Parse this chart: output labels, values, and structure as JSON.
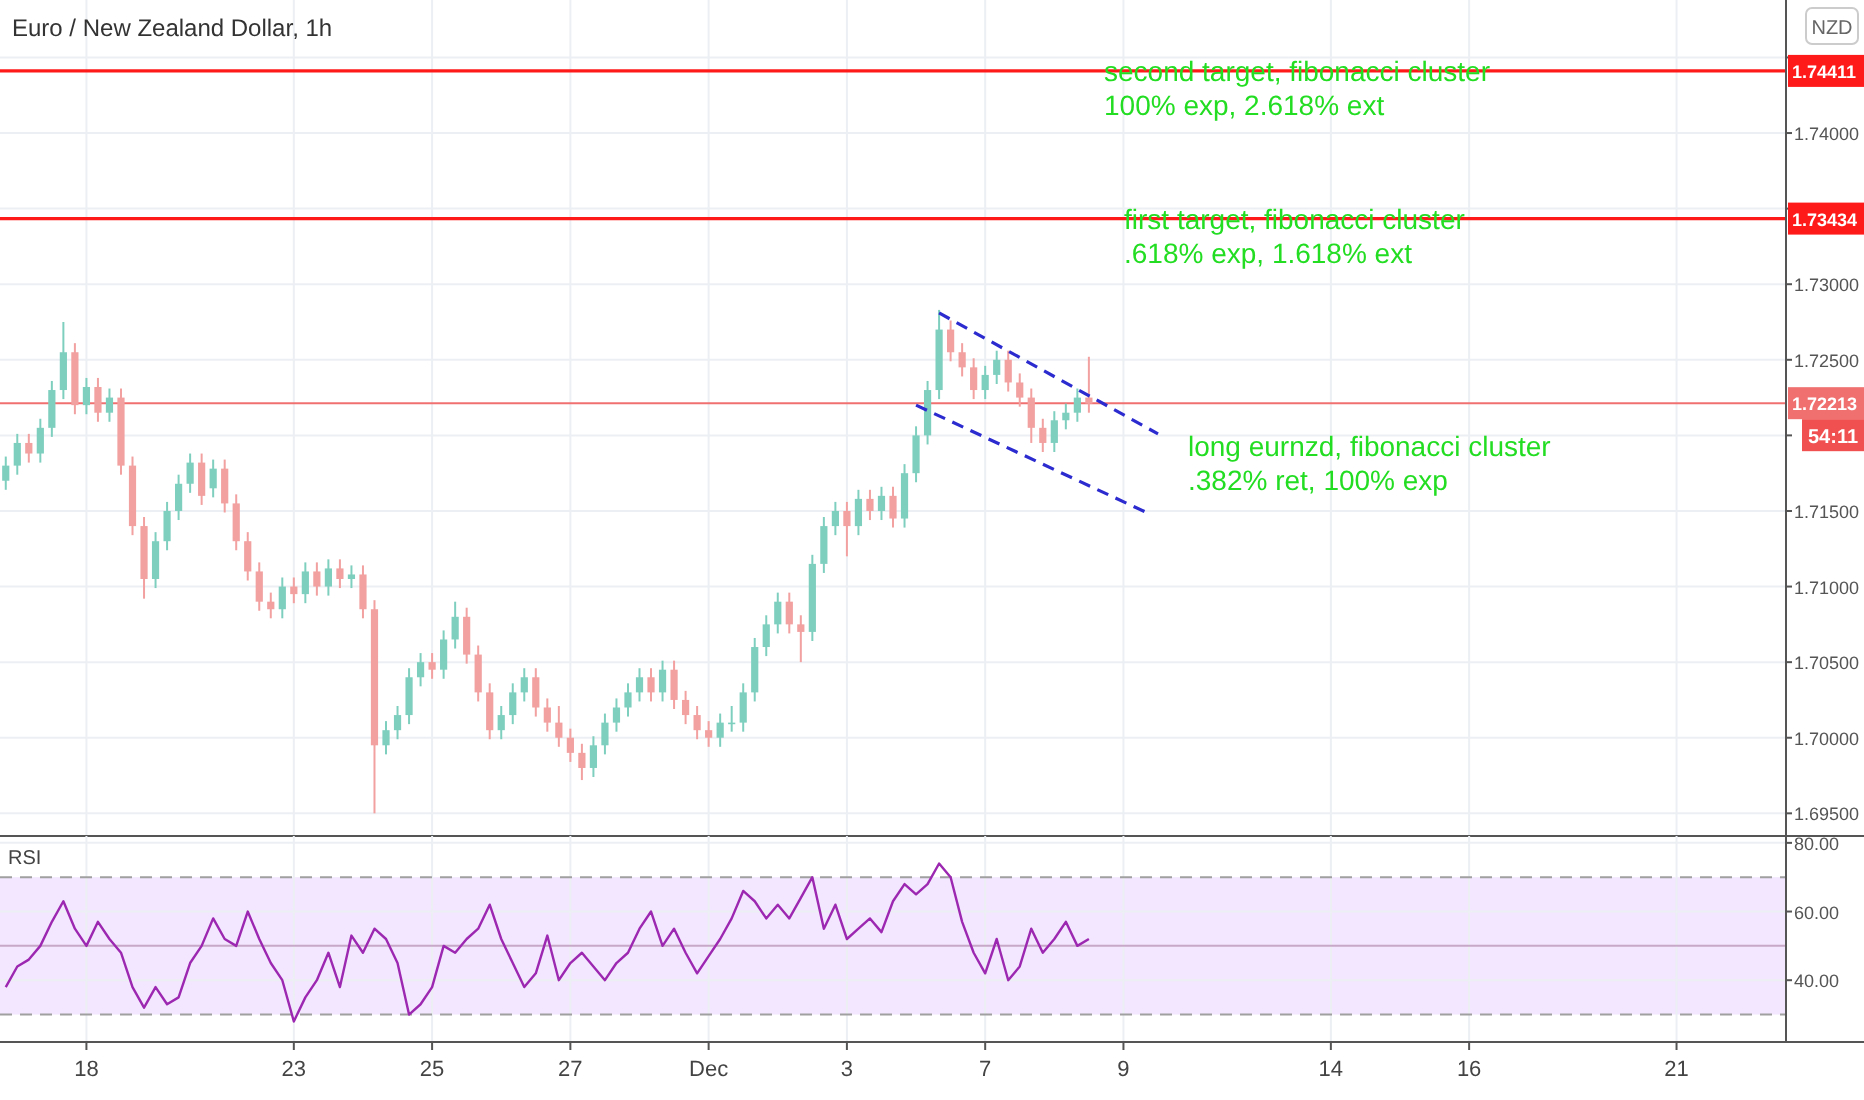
{
  "chart_data": [
    {
      "type": "candlestick",
      "title": "Euro / New Zealand Dollar, 1h",
      "ylabel": "NZD",
      "categories": [
        null,
        null,
        null,
        null,
        null,
        null,
        null,
        null,
        null,
        null,
        null,
        null,
        null,
        null,
        null,
        null,
        null,
        null,
        null,
        null,
        null,
        null,
        null,
        null,
        null,
        null,
        null,
        null,
        null,
        null,
        null,
        null,
        null,
        null,
        null,
        null,
        null,
        null,
        null,
        null,
        null,
        null,
        null,
        null,
        null,
        null,
        null,
        null,
        null,
        null,
        null,
        null,
        null,
        null,
        null,
        null,
        null,
        null,
        null,
        null,
        null,
        null,
        null,
        null,
        null,
        null,
        null,
        null,
        null,
        null,
        null,
        null,
        null,
        null,
        null,
        null,
        null,
        null,
        null,
        null,
        null,
        null,
        null,
        null,
        null,
        null,
        null,
        null,
        null,
        null,
        null,
        null,
        null,
        null,
        null,
        null,
        null,
        null,
        null,
        null,
        null,
        null,
        null,
        null,
        null,
        null,
        null,
        null,
        null,
        null,
        null,
        null,
        null,
        null,
        null,
        null,
        null,
        null,
        null,
        null,
        null,
        null,
        null,
        null,
        null,
        null,
        null,
        null,
        null,
        null,
        null,
        null,
        null,
        null,
        null,
        null,
        null,
        null,
        null,
        null,
        null,
        null,
        null,
        null,
        null,
        null,
        null,
        null,
        null,
        null,
        null,
        null,
        null,
        null,
        null
      ],
      "ohlc": [
        [
          1.717,
          1.7186,
          1.7164,
          1.718
        ],
        [
          1.718,
          1.7201,
          1.7174,
          1.7195
        ],
        [
          1.7195,
          1.7201,
          1.7182,
          1.7188
        ],
        [
          1.7188,
          1.7211,
          1.7182,
          1.7205
        ],
        [
          1.7205,
          1.7236,
          1.7199,
          1.723
        ],
        [
          1.723,
          1.7275,
          1.7224,
          1.7255
        ],
        [
          1.7255,
          1.7261,
          1.7214,
          1.722
        ],
        [
          1.722,
          1.7238,
          1.7214,
          1.7232
        ],
        [
          1.7232,
          1.7238,
          1.7209,
          1.7215
        ],
        [
          1.7215,
          1.7231,
          1.7209,
          1.7225
        ],
        [
          1.7225,
          1.7231,
          1.7174,
          1.718
        ],
        [
          1.718,
          1.7186,
          1.7134,
          1.714
        ],
        [
          1.714,
          1.7146,
          1.7092,
          1.7105
        ],
        [
          1.7105,
          1.7136,
          1.7099,
          1.713
        ],
        [
          1.713,
          1.7156,
          1.7124,
          1.715
        ],
        [
          1.715,
          1.7174,
          1.7144,
          1.7168
        ],
        [
          1.7168,
          1.7188,
          1.7162,
          1.7182
        ],
        [
          1.7182,
          1.7188,
          1.7154,
          1.716
        ],
        [
          1.7165,
          1.7184,
          1.7159,
          1.7178
        ],
        [
          1.7178,
          1.7184,
          1.7149,
          1.7155
        ],
        [
          1.7155,
          1.7161,
          1.7124,
          1.713
        ],
        [
          1.713,
          1.7136,
          1.7104,
          1.711
        ],
        [
          1.711,
          1.7116,
          1.7084,
          1.709
        ],
        [
          1.709,
          1.7096,
          1.7079,
          1.7085
        ],
        [
          1.7085,
          1.7106,
          1.7079,
          1.71
        ],
        [
          1.71,
          1.7106,
          1.7089,
          1.7095
        ],
        [
          1.7095,
          1.7116,
          1.7089,
          1.711
        ],
        [
          1.711,
          1.7116,
          1.7094,
          1.71
        ],
        [
          1.71,
          1.7118,
          1.7094,
          1.7112
        ],
        [
          1.7112,
          1.7118,
          1.7099,
          1.7105
        ],
        [
          1.7105,
          1.7114,
          1.7099,
          1.7108
        ],
        [
          1.7108,
          1.7114,
          1.7079,
          1.7085
        ],
        [
          1.7085,
          1.7091,
          1.695,
          1.6995
        ],
        [
          1.6995,
          1.7011,
          1.6989,
          1.7005
        ],
        [
          1.7005,
          1.7021,
          1.6999,
          1.7015
        ],
        [
          1.7015,
          1.7046,
          1.7009,
          1.704
        ],
        [
          1.704,
          1.7056,
          1.7034,
          1.705
        ],
        [
          1.705,
          1.7056,
          1.7039,
          1.7045
        ],
        [
          1.7045,
          1.7071,
          1.7039,
          1.7065
        ],
        [
          1.7065,
          1.709,
          1.7059,
          1.708
        ],
        [
          1.708,
          1.7086,
          1.7049,
          1.7055
        ],
        [
          1.7055,
          1.7061,
          1.7024,
          1.703
        ],
        [
          1.703,
          1.7036,
          1.6999,
          1.7005
        ],
        [
          1.7005,
          1.7021,
          1.6999,
          1.7015
        ],
        [
          1.7015,
          1.7036,
          1.7009,
          1.703
        ],
        [
          1.703,
          1.7046,
          1.7024,
          1.704
        ],
        [
          1.704,
          1.7046,
          1.7014,
          1.702
        ],
        [
          1.702,
          1.7026,
          1.7004,
          1.701
        ],
        [
          1.701,
          1.7021,
          1.6994,
          1.7
        ],
        [
          1.7,
          1.7006,
          1.6984,
          1.699
        ],
        [
          1.699,
          1.6996,
          1.6972,
          1.698
        ],
        [
          1.698,
          1.7001,
          1.6974,
          1.6995
        ],
        [
          1.6995,
          1.7016,
          1.6989,
          1.701
        ],
        [
          1.701,
          1.7026,
          1.7004,
          1.702
        ],
        [
          1.702,
          1.7036,
          1.7014,
          1.703
        ],
        [
          1.703,
          1.7046,
          1.7024,
          1.704
        ],
        [
          1.704,
          1.7046,
          1.7024,
          1.703
        ],
        [
          1.703,
          1.7051,
          1.7024,
          1.7045
        ],
        [
          1.7045,
          1.7051,
          1.7019,
          1.7025
        ],
        [
          1.7025,
          1.7031,
          1.7009,
          1.7015
        ],
        [
          1.7015,
          1.7021,
          1.6999,
          1.7005
        ],
        [
          1.7005,
          1.7011,
          1.6994,
          1.7
        ],
        [
          1.7,
          1.7016,
          1.6994,
          1.701
        ],
        [
          1.701,
          1.7021,
          1.7004,
          1.701
        ],
        [
          1.701,
          1.7036,
          1.7004,
          1.703
        ],
        [
          1.703,
          1.7066,
          1.7024,
          1.706
        ],
        [
          1.706,
          1.7081,
          1.7054,
          1.7075
        ],
        [
          1.7075,
          1.7096,
          1.7069,
          1.709
        ],
        [
          1.709,
          1.7096,
          1.7069,
          1.7075
        ],
        [
          1.7075,
          1.7081,
          1.705,
          1.707
        ],
        [
          1.707,
          1.7121,
          1.7064,
          1.7115
        ],
        [
          1.7115,
          1.7146,
          1.7109,
          1.714
        ],
        [
          1.714,
          1.7156,
          1.7134,
          1.715
        ],
        [
          1.715,
          1.7156,
          1.712,
          1.714
        ],
        [
          1.714,
          1.7164,
          1.7134,
          1.7158
        ],
        [
          1.7158,
          1.7164,
          1.7144,
          1.715
        ],
        [
          1.715,
          1.7166,
          1.7144,
          1.716
        ],
        [
          1.716,
          1.7166,
          1.7139,
          1.7145
        ],
        [
          1.7145,
          1.7181,
          1.7139,
          1.7175
        ],
        [
          1.7175,
          1.7206,
          1.7169,
          1.72
        ],
        [
          1.72,
          1.7236,
          1.7194,
          1.723
        ],
        [
          1.723,
          1.7283,
          1.7224,
          1.727
        ],
        [
          1.727,
          1.7276,
          1.7249,
          1.7255
        ],
        [
          1.7255,
          1.7261,
          1.7239,
          1.7245
        ],
        [
          1.7245,
          1.7251,
          1.7224,
          1.723
        ],
        [
          1.723,
          1.7246,
          1.7224,
          1.724
        ],
        [
          1.724,
          1.7256,
          1.7234,
          1.725
        ],
        [
          1.725,
          1.7256,
          1.7229,
          1.7235
        ],
        [
          1.7235,
          1.7241,
          1.7219,
          1.7225
        ],
        [
          1.7225,
          1.7231,
          1.7195,
          1.7205
        ],
        [
          1.7205,
          1.7211,
          1.7189,
          1.7195
        ],
        [
          1.7195,
          1.7216,
          1.7189,
          1.721
        ],
        [
          1.721,
          1.7221,
          1.7204,
          1.7215
        ],
        [
          1.7215,
          1.7231,
          1.7209,
          1.7225
        ],
        [
          1.7225,
          1.7252,
          1.7215,
          1.7221
        ],
        null,
        null,
        null,
        null,
        null,
        null,
        null,
        null,
        null,
        null,
        null,
        null,
        null,
        null,
        null,
        null,
        null,
        null,
        null,
        null,
        null,
        null,
        null,
        null,
        null,
        null,
        null,
        null,
        null,
        null,
        null,
        null,
        null,
        null,
        null,
        null,
        null,
        null,
        null,
        null,
        null,
        null,
        null,
        null,
        null,
        null,
        null,
        null,
        null,
        null,
        null,
        null,
        null,
        null,
        null,
        null,
        null,
        null,
        null,
        null
      ],
      "series": [
        {
          "type": "line",
          "color": "#2b2bd0",
          "line_style": "dashed",
          "values": [
            null,
            null,
            null,
            null,
            null,
            null,
            null,
            null,
            null,
            null,
            null,
            null,
            null,
            null,
            null,
            null,
            null,
            null,
            null,
            null,
            null,
            null,
            null,
            null,
            null,
            null,
            null,
            null,
            null,
            null,
            null,
            null,
            null,
            null,
            null,
            null,
            null,
            null,
            null,
            null,
            null,
            null,
            null,
            null,
            null,
            null,
            null,
            null,
            null,
            null,
            null,
            null,
            null,
            null,
            null,
            null,
            null,
            null,
            null,
            null,
            null,
            null,
            null,
            null,
            null,
            null,
            null,
            null,
            null,
            null,
            null,
            null,
            null,
            null,
            null,
            null,
            null,
            null,
            null,
            null,
            null,
            1.7281,
            null,
            null,
            null,
            null,
            null,
            null,
            null,
            null,
            null,
            null,
            null,
            null,
            null,
            null,
            null,
            null,
            null,
            null,
            1.7201,
            null,
            null,
            null,
            null,
            null,
            null,
            null,
            null,
            null,
            null,
            null,
            null,
            null,
            null,
            null,
            null,
            null,
            null,
            null,
            null,
            null,
            null,
            null,
            null,
            null,
            null,
            null,
            null,
            null,
            null,
            null,
            null,
            null,
            null,
            null,
            null,
            null,
            null,
            null,
            null,
            null,
            null,
            null,
            null,
            null,
            null,
            null,
            null,
            null,
            null,
            null,
            null,
            null,
            null
          ]
        },
        {
          "type": "line",
          "color": "#2b2bd0",
          "line_style": "dashed",
          "values": [
            null,
            null,
            null,
            null,
            null,
            null,
            null,
            null,
            null,
            null,
            null,
            null,
            null,
            null,
            null,
            null,
            null,
            null,
            null,
            null,
            null,
            null,
            null,
            null,
            null,
            null,
            null,
            null,
            null,
            null,
            null,
            null,
            null,
            null,
            null,
            null,
            null,
            null,
            null,
            null,
            null,
            null,
            null,
            null,
            null,
            null,
            null,
            null,
            null,
            null,
            null,
            null,
            null,
            null,
            null,
            null,
            null,
            null,
            null,
            null,
            null,
            null,
            null,
            null,
            null,
            null,
            null,
            null,
            null,
            null,
            null,
            null,
            null,
            null,
            null,
            null,
            null,
            null,
            null,
            1.722,
            null,
            null,
            null,
            null,
            null,
            null,
            null,
            null,
            null,
            null,
            null,
            null,
            null,
            null,
            null,
            null,
            null,
            null,
            null,
            1.7149,
            null,
            null,
            null,
            null,
            null,
            null,
            null,
            null,
            null,
            null,
            null,
            null,
            null,
            null,
            null,
            null,
            null,
            null,
            null,
            null,
            null,
            null,
            null,
            null,
            null,
            null,
            null,
            null,
            null,
            null,
            null,
            null,
            null,
            null,
            null,
            null,
            null,
            null,
            null,
            null,
            null,
            null,
            null,
            null,
            null,
            null,
            null,
            null,
            null,
            null,
            null,
            null,
            null,
            null,
            null
          ]
        }
      ],
      "ylim": [
        1.6935,
        1.7488
      ],
      "yticks": [
        {
          "value": 1.695,
          "label": "1.69500"
        },
        {
          "value": 1.7,
          "label": "1.70000"
        },
        {
          "value": 1.705,
          "label": "1.70500"
        },
        {
          "value": 1.71,
          "label": "1.71000"
        },
        {
          "value": 1.715,
          "label": "1.71500"
        },
        {
          "value": 1.72,
          "label": null
        },
        {
          "value": 1.725,
          "label": "1.72500"
        },
        {
          "value": 1.73,
          "label": "1.73000"
        },
        {
          "value": 1.735,
          "label": null
        },
        {
          "value": 1.74,
          "label": "1.74000"
        },
        {
          "value": 1.745,
          "label": null
        }
      ],
      "tick_labels": "y",
      "grid": true,
      "ref_lines": [
        {
          "axis": "y",
          "value": 1.74411,
          "label": "1.74411",
          "color": "#ff1a1a"
        },
        {
          "axis": "y",
          "value": 1.73434,
          "label": "1.73434",
          "color": "#ff1a1a"
        },
        {
          "axis": "y",
          "value": 1.72213,
          "label": "1.72213",
          "color": "#f07070"
        }
      ],
      "annotations": [
        {
          "text": "second target, fibonacci cluster\n100% exp, 2.618% ext",
          "y": 1.74411
        },
        {
          "text": "first target, fibonacci cluster\n.618% exp, 1.618% ext",
          "y": 1.73434
        },
        "long eurnzd, fibonacci cluster\n.382% ret, 100% exp",
        "54:11"
      ]
    },
    {
      "type": "line",
      "title": "RSI",
      "categories": [
        null,
        null,
        null,
        null,
        null,
        null,
        null,
        "18",
        null,
        null,
        null,
        null,
        null,
        null,
        null,
        null,
        null,
        null,
        null,
        null,
        null,
        null,
        null,
        null,
        null,
        "23",
        null,
        null,
        null,
        null,
        null,
        null,
        null,
        null,
        null,
        null,
        null,
        "25",
        null,
        null,
        null,
        null,
        null,
        null,
        null,
        null,
        null,
        null,
        null,
        "27",
        null,
        null,
        null,
        null,
        null,
        null,
        null,
        null,
        null,
        null,
        null,
        "Dec",
        null,
        null,
        null,
        null,
        null,
        null,
        null,
        null,
        null,
        null,
        null,
        "3",
        null,
        null,
        null,
        null,
        null,
        null,
        null,
        null,
        null,
        null,
        null,
        "7",
        null,
        null,
        null,
        null,
        null,
        null,
        null,
        null,
        null,
        null,
        null,
        "9",
        null,
        null,
        null,
        null,
        null,
        null,
        null,
        null,
        null,
        null,
        null,
        null,
        null,
        null,
        null,
        null,
        null,
        "14",
        null,
        null,
        null,
        null,
        null,
        null,
        null,
        null,
        null,
        null,
        null,
        "16",
        null,
        null,
        null,
        null,
        null,
        null,
        null,
        null,
        null,
        null,
        null,
        null,
        null,
        null,
        null,
        null,
        null,
        "21",
        null,
        null,
        null,
        null,
        null,
        null,
        null,
        null,
        null
      ],
      "series": [
        {
          "color": "#9c27b0",
          "values": [
            38,
            44,
            46,
            50,
            57,
            63,
            55,
            50,
            57,
            52,
            48,
            38,
            32,
            38,
            33,
            35,
            45,
            50,
            58,
            52,
            50,
            60,
            52,
            45,
            40,
            28,
            35,
            40,
            48,
            38,
            53,
            48,
            55,
            52,
            45,
            30,
            33,
            38,
            50,
            48,
            52,
            55,
            62,
            52,
            45,
            38,
            42,
            53,
            40,
            45,
            48,
            44,
            40,
            45,
            48,
            55,
            60,
            50,
            55,
            48,
            42,
            47,
            52,
            58,
            66,
            63,
            58,
            62,
            58,
            64,
            70,
            55,
            62,
            52,
            55,
            58,
            54,
            63,
            68,
            65,
            68,
            74,
            70,
            57,
            48,
            42,
            52,
            40,
            44,
            55,
            48,
            52,
            57,
            50,
            52,
            null,
            null,
            null,
            null,
            null,
            null,
            null,
            null,
            null,
            null,
            null,
            null,
            null,
            null,
            null,
            null,
            null,
            null,
            null,
            null,
            null,
            null,
            null,
            null,
            null,
            null,
            null,
            null,
            null,
            null,
            null,
            null,
            null,
            null,
            null,
            null,
            null,
            null,
            null,
            null,
            null,
            null,
            null,
            null,
            null,
            null,
            null,
            null,
            null,
            null,
            null,
            null,
            null,
            null,
            null,
            null,
            null,
            null,
            null,
            null
          ]
        }
      ],
      "ylim": [
        22,
        82
      ],
      "yticks": [
        {
          "value": 40,
          "label": "40.00"
        },
        {
          "value": 60,
          "label": "60.00"
        },
        {
          "value": 80,
          "label": "80.00"
        }
      ],
      "grid": true,
      "bands": [
        {
          "axis": "y",
          "from": 30,
          "to": 70,
          "color": "#f3e6ff"
        }
      ],
      "ref_lines": [
        {
          "axis": "y",
          "value": 70,
          "color": "#a0a0a0",
          "line_style": "dashed"
        },
        {
          "axis": "y",
          "value": 50,
          "color": "#c8a8c8",
          "line_style": "solid"
        },
        {
          "axis": "y",
          "value": 30,
          "color": "#a0a0a0",
          "line_style": "dashed"
        }
      ]
    }
  ]
}
